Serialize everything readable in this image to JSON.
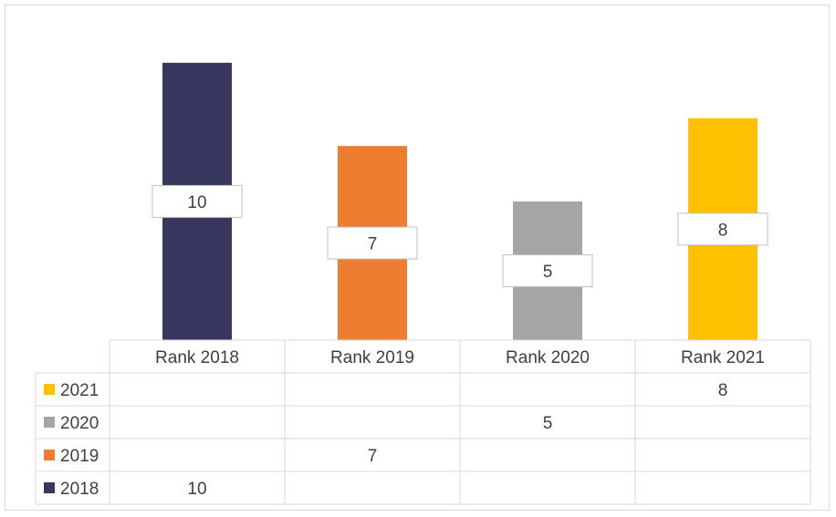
{
  "chart_data": {
    "type": "bar",
    "categories": [
      "Rank 2018",
      "Rank 2019",
      "Rank 2020",
      "Rank 2021"
    ],
    "series": [
      {
        "name": "2018",
        "color": "#383760",
        "values": [
          10,
          null,
          null,
          null
        ]
      },
      {
        "name": "2019",
        "color": "#ED7D31",
        "values": [
          null,
          7,
          null,
          null
        ]
      },
      {
        "name": "2020",
        "color": "#A5A5A5",
        "values": [
          null,
          null,
          5,
          null
        ]
      },
      {
        "name": "2021",
        "color": "#FFC000",
        "values": [
          null,
          null,
          null,
          8
        ]
      }
    ],
    "ylim": [
      0,
      12
    ],
    "grid": false,
    "legend": "data-table",
    "data_labels": true
  }
}
